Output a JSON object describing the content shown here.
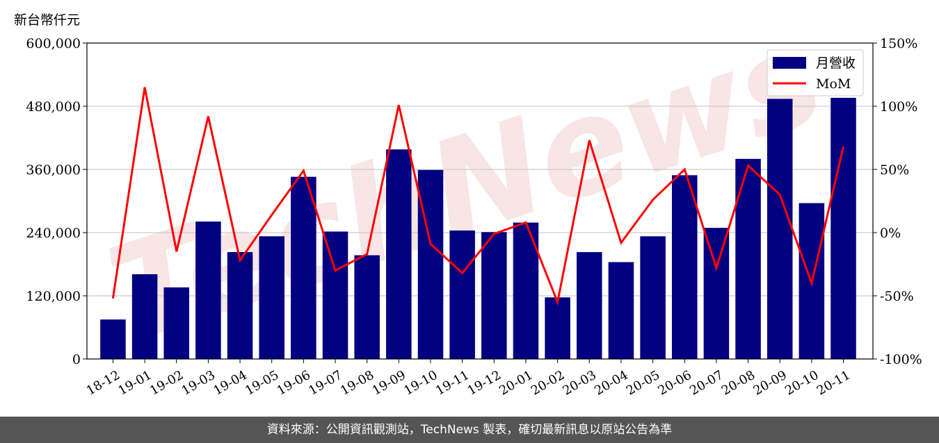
{
  "unit_label": "新台幣仟元",
  "watermark": "TechNews",
  "footer": "資料來源：公開資訊觀測站，TechNews 製表，確切最新訊息以原站公告為準",
  "colors": {
    "bar": "#000080",
    "line": "#ff0000",
    "grid": "#cccccc",
    "watermark": "#f5dada",
    "footer_bg": "#555555"
  },
  "chart_data": {
    "type": "bar",
    "categories": [
      "18-12",
      "19-01",
      "19-02",
      "19-03",
      "19-04",
      "19-05",
      "19-06",
      "19-07",
      "19-08",
      "19-09",
      "19-10",
      "19-11",
      "19-12",
      "20-01",
      "20-02",
      "20-03",
      "20-04",
      "20-05",
      "20-06",
      "20-07",
      "20-08",
      "20-09",
      "20-10",
      "20-11"
    ],
    "series": [
      {
        "name": "月營收",
        "type": "bar",
        "axis": "left",
        "values": [
          75000,
          161000,
          136000,
          261000,
          203000,
          233000,
          346000,
          242000,
          197000,
          398000,
          359000,
          244000,
          241000,
          259000,
          117000,
          203000,
          184000,
          233000,
          349000,
          249000,
          380000,
          494000,
          296000,
          496000
        ]
      },
      {
        "name": "MoM",
        "type": "line",
        "axis": "right",
        "values": [
          -52,
          115,
          -15,
          92,
          -22,
          14,
          49,
          -30,
          -17,
          101,
          -9,
          -32,
          -1,
          8,
          -55,
          73,
          -8,
          26,
          50,
          -28,
          53,
          30,
          -40,
          68
        ]
      }
    ],
    "ylim_left": [
      0,
      600000
    ],
    "ylim_right": [
      -100,
      150
    ],
    "yticks_left": [
      "0",
      "120,000",
      "240,000",
      "360,000",
      "480,000",
      "600,000"
    ],
    "yticks_right": [
      "-100%",
      "-50%",
      "0%",
      "50%",
      "100%",
      "150%"
    ],
    "grid": true,
    "legend": "top-right"
  }
}
